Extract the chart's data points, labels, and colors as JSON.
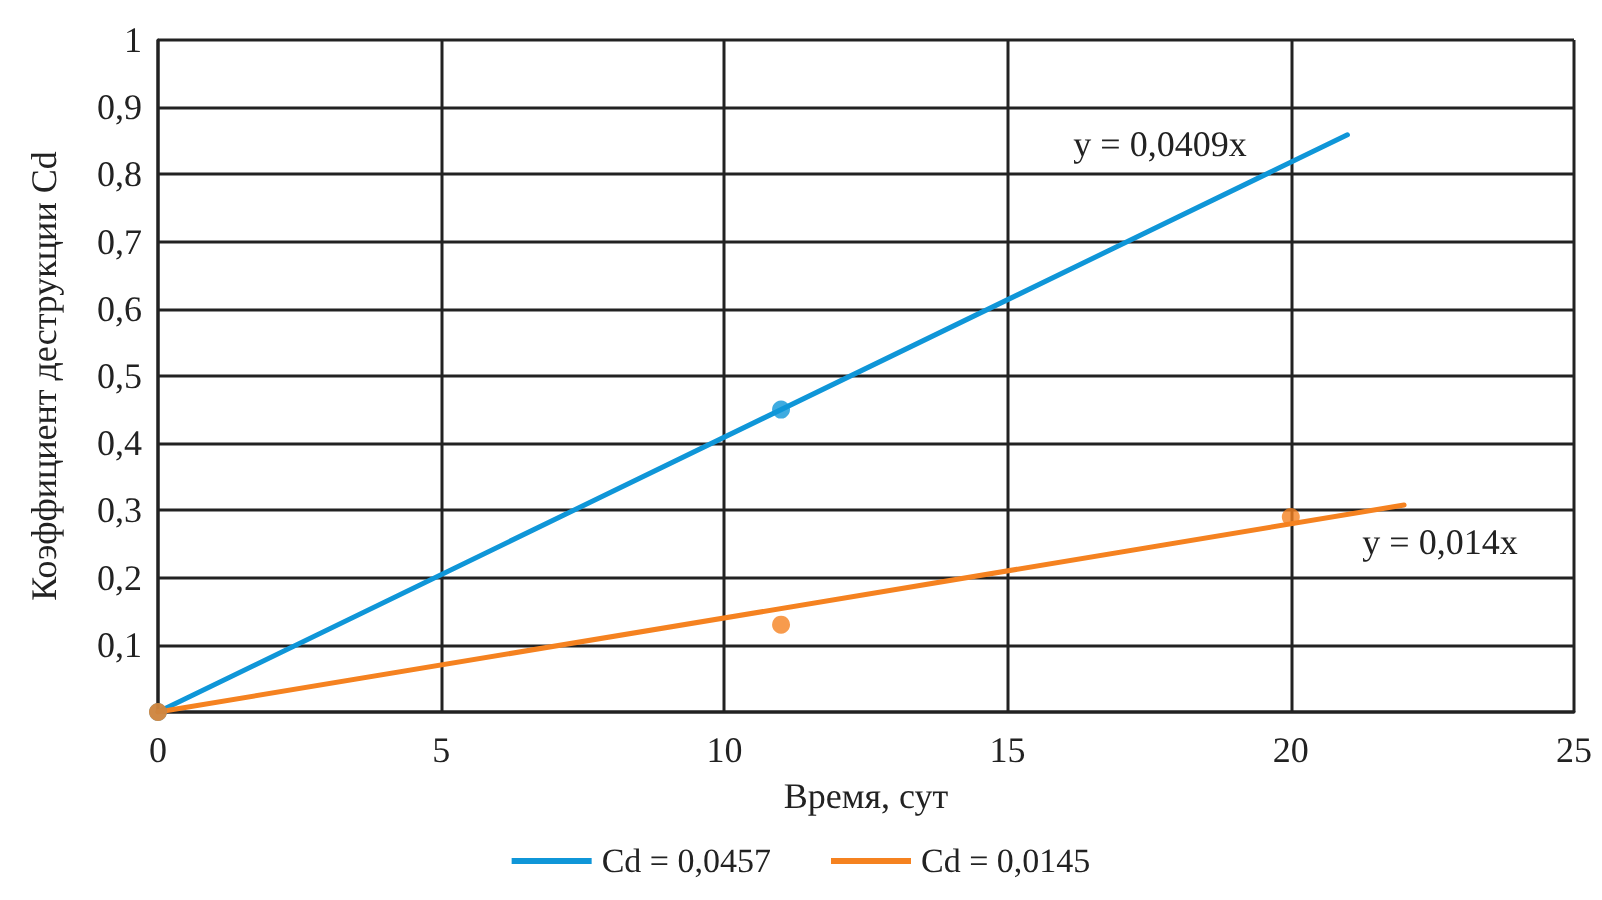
{
  "chart_data": {
    "type": "scatter",
    "xlabel": "Время, сут",
    "ylabel": "Коэффициент деструкции Cd",
    "xlim": [
      0,
      25
    ],
    "xticks": [
      0,
      5,
      10,
      15,
      20,
      25
    ],
    "ylim": [
      0,
      1
    ],
    "yticks": [
      {
        "value": 0,
        "label": null
      },
      {
        "value": 0.1,
        "label": "0,1"
      },
      {
        "value": 0.2,
        "label": "0,2"
      },
      {
        "value": 0.3,
        "label": "0,3"
      },
      {
        "value": 0.4,
        "label": "0,4"
      },
      {
        "value": 0.5,
        "label": "0,5"
      },
      {
        "value": 0.6,
        "label": "0,6"
      },
      {
        "value": 0.7,
        "label": "0,7"
      },
      {
        "value": 0.8,
        "label": "0,8"
      },
      {
        "value": 0.9,
        "label": "0,9"
      },
      {
        "value": 1,
        "label": "1"
      }
    ],
    "grid": true,
    "legend": "bottom",
    "marker": "circle",
    "series": [
      {
        "color": "#0f96d8",
        "x": [
          0,
          11
        ],
        "values": [
          0,
          0.45
        ]
      },
      {
        "color": "#f58220",
        "x": [
          0,
          11,
          20
        ],
        "values": [
          0,
          0.13,
          0.29
        ]
      },
      {
        "type": "line",
        "name": "Cd = 0,0457",
        "color": "#0f96d8",
        "x": [
          0,
          21
        ],
        "values": [
          0,
          0.859
        ],
        "marker": "none",
        "line_style": "solid"
      },
      {
        "type": "line",
        "name": "Cd = 0,0145",
        "color": "#f58220",
        "x": [
          0,
          22
        ],
        "values": [
          0,
          0.308
        ],
        "marker": "none",
        "line_style": "solid"
      }
    ],
    "annotations": [
      "y = 0,0409x",
      "y = 0,014x"
    ]
  }
}
